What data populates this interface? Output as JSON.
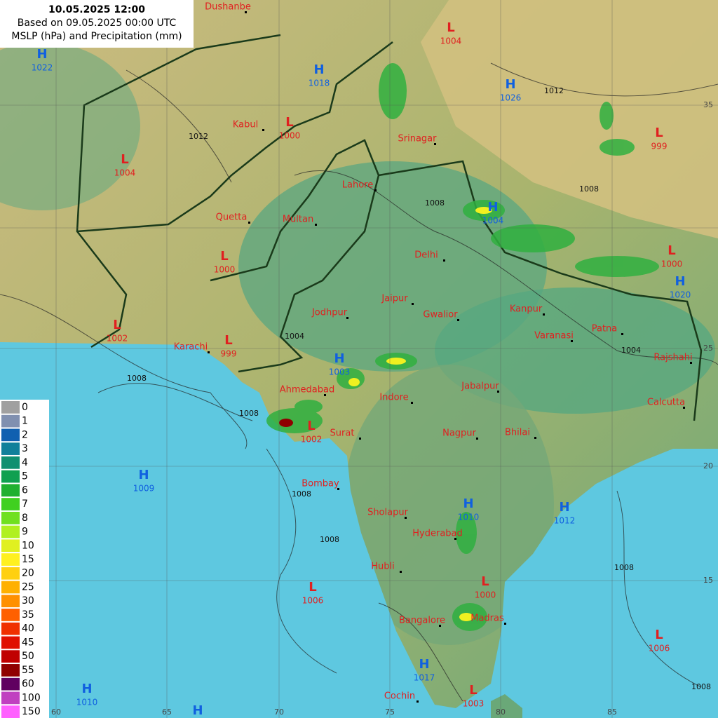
{
  "header": {
    "time": "10.05.2025 12:00",
    "base": "Based on 09.05.2025 00:00 UTC",
    "title": "MSLP (hPa) and Precipitation (mm)"
  },
  "legend": [
    {
      "label": 0,
      "color": "#a0a0a0"
    },
    {
      "label": 1,
      "color": "#8090b0"
    },
    {
      "label": 2,
      "color": "#1060b0"
    },
    {
      "label": 3,
      "color": "#10809a"
    },
    {
      "label": 4,
      "color": "#109070"
    },
    {
      "label": 5,
      "color": "#10a050"
    },
    {
      "label": 6,
      "color": "#20b030"
    },
    {
      "label": 7,
      "color": "#40d020"
    },
    {
      "label": 8,
      "color": "#70e020"
    },
    {
      "label": 9,
      "color": "#b0f020"
    },
    {
      "label": 10,
      "color": "#e0f020"
    },
    {
      "label": 15,
      "color": "#fff020"
    },
    {
      "label": 20,
      "color": "#ffd010"
    },
    {
      "label": 25,
      "color": "#ffb000"
    },
    {
      "label": 30,
      "color": "#ff9000"
    },
    {
      "label": 35,
      "color": "#ff6000"
    },
    {
      "label": 40,
      "color": "#f03000"
    },
    {
      "label": 45,
      "color": "#e01000"
    },
    {
      "label": 50,
      "color": "#c00000"
    },
    {
      "label": 55,
      "color": "#900000"
    },
    {
      "label": 60,
      "color": "#600060"
    },
    {
      "label": 100,
      "color": "#c040c0"
    },
    {
      "label": 150,
      "color": "#ff60ff"
    }
  ],
  "grid": {
    "lon": [
      60,
      65,
      70,
      75,
      80,
      85
    ],
    "lat": [
      35,
      25,
      20,
      15
    ]
  },
  "cities": [
    "Dushanbe",
    "Kabul",
    "Srinagar",
    "Lahore",
    "Quetta",
    "Multan",
    "Delhi",
    "Jaipur",
    "Jodhpur",
    "Gwalior",
    "Kanpur",
    "Patna",
    "Varanasi",
    "Karachi",
    "Rajshahi",
    "Ahmedabad",
    "Jabalpur",
    "Indore",
    "Calcutta",
    "Surat",
    "Nagpur",
    "Bhilai",
    "Bombay",
    "Sholapur",
    "Hyderabad",
    "Hubli",
    "Bangalore",
    "Madras",
    "Cochin"
  ],
  "centers": [
    {
      "kind": "H",
      "value": 1022
    },
    {
      "kind": "L",
      "value": 1004
    },
    {
      "kind": "H",
      "value": 1018
    },
    {
      "kind": "H",
      "value": 1026
    },
    {
      "kind": "L",
      "value": 1000
    },
    {
      "kind": "L",
      "value": 1004
    },
    {
      "kind": "L",
      "value": 999
    },
    {
      "kind": "H",
      "value": 1004
    },
    {
      "kind": "L",
      "value": 1000
    },
    {
      "kind": "L",
      "value": 1000
    },
    {
      "kind": "H",
      "value": 1020
    },
    {
      "kind": "L",
      "value": 1002
    },
    {
      "kind": "L",
      "value": 999
    },
    {
      "kind": "H",
      "value": 1003
    },
    {
      "kind": "L",
      "value": 1002
    },
    {
      "kind": "H",
      "value": 1009
    },
    {
      "kind": "H",
      "value": 1010
    },
    {
      "kind": "H",
      "value": 1012
    },
    {
      "kind": "L",
      "value": 1006
    },
    {
      "kind": "L",
      "value": 1000
    },
    {
      "kind": "L",
      "value": 1006
    },
    {
      "kind": "H",
      "value": 1017
    },
    {
      "kind": "H",
      "value": 1010
    },
    {
      "kind": "L",
      "value": 1003
    },
    {
      "kind": "H"
    }
  ],
  "isobars": [
    1008,
    1012,
    1008,
    1008,
    1008,
    1004,
    1012,
    1008,
    1008,
    1008,
    1004,
    1008
  ]
}
